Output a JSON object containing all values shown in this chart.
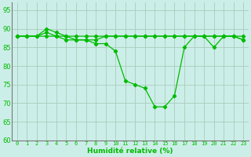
{
  "xlabel": "Humidité relative (%)",
  "background_color": "#cceee8",
  "grid_color": "#aaccbb",
  "line_color": "#00bb00",
  "marker_color": "#00bb00",
  "ylim": [
    60,
    97
  ],
  "xlim": [
    -0.5,
    23.5
  ],
  "yticks": [
    60,
    65,
    70,
    75,
    80,
    85,
    90,
    95
  ],
  "xticks": [
    0,
    1,
    2,
    3,
    4,
    5,
    6,
    7,
    8,
    9,
    10,
    11,
    12,
    13,
    14,
    15,
    16,
    17,
    18,
    19,
    20,
    21,
    22,
    23
  ],
  "series1": [
    88,
    88,
    88,
    88,
    88,
    88,
    88,
    88,
    88,
    88,
    88,
    88,
    88,
    88,
    88,
    88,
    88,
    88,
    88,
    88,
    88,
    88,
    88,
    87
  ],
  "series2": [
    88,
    88,
    88,
    89,
    88,
    87,
    87,
    87,
    86,
    86,
    84,
    76,
    75,
    74,
    69,
    69,
    72,
    85,
    88,
    88,
    85,
    88,
    88,
    87
  ],
  "series3": [
    88,
    88,
    88,
    90,
    89,
    88,
    87,
    87,
    87,
    88,
    88,
    88,
    88,
    88,
    88,
    88,
    88,
    88,
    88,
    88,
    88,
    88,
    88,
    88
  ]
}
